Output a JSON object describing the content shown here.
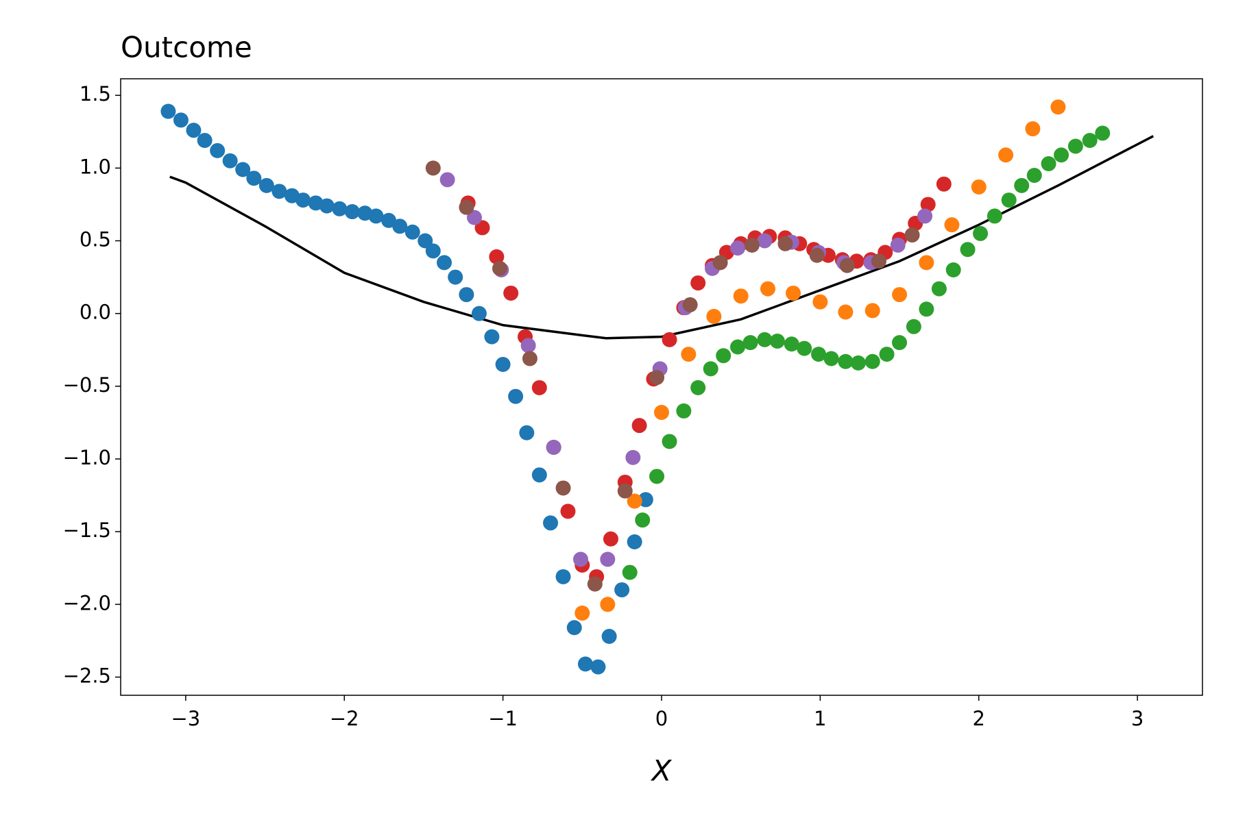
{
  "chart_data": {
    "type": "scatter",
    "title": "Outcome",
    "xlabel": "X",
    "xlim": [
      -3.41,
      3.41
    ],
    "ylim": [
      -2.625,
      1.614
    ],
    "xticks": [
      {
        "value": -3,
        "label": "−3"
      },
      {
        "value": -2,
        "label": "−2"
      },
      {
        "value": -1,
        "label": "−1"
      },
      0,
      1,
      2,
      3
    ],
    "yticks": [
      {
        "value": -2.5,
        "label": "−2.5"
      },
      {
        "value": -2,
        "label": "−2.0"
      },
      {
        "value": -1.5,
        "label": "−1.5"
      },
      {
        "value": -1,
        "label": "−1.0"
      },
      {
        "value": -0.5,
        "label": "−0.5"
      },
      {
        "value": 0,
        "label": "0.0"
      },
      0.5,
      {
        "value": 1,
        "label": "1.0"
      },
      1.5
    ],
    "series": [
      {
        "color": "#1f77b4",
        "x": [
          -3.11,
          -3.03,
          -2.95,
          -2.88,
          -2.8,
          -2.72,
          -2.64,
          -2.57,
          -2.49,
          -2.41,
          -2.33,
          -2.26,
          -2.18,
          -2.11,
          -2.03,
          -1.95,
          -1.87,
          -1.8,
          -1.72,
          -1.65,
          -1.57,
          -1.49,
          -1.44,
          -1.37,
          -1.3,
          -1.23,
          -1.15,
          -1.07,
          -1.0,
          -0.92,
          -0.85,
          -0.77,
          -0.7,
          -0.62,
          -0.55,
          -0.48,
          -0.4,
          -0.33,
          -0.25,
          -0.17,
          -0.1
        ],
        "values": [
          1.39,
          1.33,
          1.26,
          1.19,
          1.12,
          1.05,
          0.99,
          0.93,
          0.88,
          0.84,
          0.81,
          0.78,
          0.76,
          0.74,
          0.72,
          0.7,
          0.69,
          0.67,
          0.64,
          0.6,
          0.56,
          0.5,
          0.43,
          0.35,
          0.25,
          0.13,
          0.0,
          -0.16,
          -0.35,
          -0.57,
          -0.82,
          -1.11,
          -1.44,
          -1.81,
          -2.16,
          -2.41,
          -2.43,
          -2.22,
          -1.9,
          -1.57,
          -1.28
        ]
      },
      {
        "color": "#ff7f0e",
        "x": [
          -0.5,
          -0.34,
          -0.17,
          0.0,
          0.17,
          0.33,
          0.5,
          0.67,
          0.83,
          1.0,
          1.16,
          1.33,
          1.5,
          1.67,
          1.83,
          2.0,
          2.17,
          2.34,
          2.5
        ],
        "values": [
          -2.06,
          -2.0,
          -1.29,
          -0.68,
          -0.28,
          -0.02,
          0.12,
          0.17,
          0.14,
          0.08,
          0.01,
          0.02,
          0.13,
          0.35,
          0.61,
          0.87,
          1.09,
          1.27,
          1.42
        ]
      },
      {
        "color": "#2ca02c",
        "x": [
          -0.2,
          -0.12,
          -0.03,
          0.05,
          0.14,
          0.23,
          0.31,
          0.39,
          0.48,
          0.56,
          0.65,
          0.73,
          0.82,
          0.9,
          0.99,
          1.07,
          1.16,
          1.24,
          1.33,
          1.42,
          1.5,
          1.59,
          1.67,
          1.75,
          1.84,
          1.93,
          2.01,
          2.1,
          2.19,
          2.27,
          2.35,
          2.44,
          2.52,
          2.61,
          2.7,
          2.78
        ],
        "values": [
          -1.78,
          -1.42,
          -1.12,
          -0.88,
          -0.67,
          -0.51,
          -0.38,
          -0.29,
          -0.23,
          -0.2,
          -0.18,
          -0.19,
          -0.21,
          -0.24,
          -0.28,
          -0.31,
          -0.33,
          -0.34,
          -0.33,
          -0.28,
          -0.2,
          -0.09,
          0.03,
          0.17,
          0.3,
          0.44,
          0.55,
          0.67,
          0.78,
          0.88,
          0.95,
          1.03,
          1.09,
          1.15,
          1.19,
          1.24
        ]
      },
      {
        "color": "#d62728",
        "x": [
          -1.22,
          -1.13,
          -1.04,
          -0.95,
          -0.86,
          -0.77,
          -0.68,
          -0.59,
          -0.5,
          -0.41,
          -0.32,
          -0.23,
          -0.14,
          -0.05,
          0.05,
          0.14,
          0.23,
          0.32,
          0.41,
          0.5,
          0.59,
          0.68,
          0.78,
          0.87,
          0.96,
          1.05,
          1.14,
          1.23,
          1.32,
          1.41,
          1.5,
          1.6,
          1.68,
          1.78
        ],
        "values": [
          0.76,
          0.59,
          0.39,
          0.14,
          -0.16,
          -0.51,
          -0.92,
          -1.36,
          -1.73,
          -1.81,
          -1.55,
          -1.16,
          -0.77,
          -0.45,
          -0.18,
          0.04,
          0.21,
          0.33,
          0.42,
          0.48,
          0.52,
          0.53,
          0.52,
          0.48,
          0.44,
          0.4,
          0.37,
          0.36,
          0.37,
          0.42,
          0.51,
          0.62,
          0.75,
          0.89
        ]
      },
      {
        "color": "#9467bd",
        "x": [
          -1.35,
          -1.18,
          -1.01,
          -0.84,
          -0.68,
          -0.51,
          -0.34,
          -0.18,
          -0.01,
          0.15,
          0.32,
          0.48,
          0.65,
          0.82,
          0.99,
          1.15,
          1.32,
          1.49,
          1.66
        ],
        "values": [
          0.92,
          0.66,
          0.3,
          -0.22,
          -0.92,
          -1.69,
          -1.69,
          -0.99,
          -0.38,
          0.04,
          0.31,
          0.45,
          0.5,
          0.49,
          0.42,
          0.35,
          0.35,
          0.47,
          0.67
        ]
      },
      {
        "color": "#8c564b",
        "x": [
          -1.44,
          -1.23,
          -1.02,
          -0.83,
          -0.62,
          -0.42,
          -0.23,
          -0.03,
          0.18,
          0.37,
          0.57,
          0.78,
          0.98,
          1.17,
          1.37,
          1.58
        ],
        "values": [
          1.0,
          0.73,
          0.31,
          -0.31,
          -1.2,
          -1.86,
          -1.22,
          -0.44,
          0.06,
          0.35,
          0.47,
          0.48,
          0.4,
          0.33,
          0.36,
          0.54
        ]
      }
    ],
    "lines": [
      {
        "color": "#000000",
        "x": [
          -3.1,
          -3,
          -2.5,
          -2,
          -1.5,
          -1,
          -0.5,
          -0.35,
          0,
          0.5,
          1,
          1.5,
          2,
          2.5,
          3.1
        ],
        "values": [
          0.94,
          0.9,
          0.6,
          0.28,
          0.08,
          -0.08,
          -0.15,
          -0.17,
          -0.16,
          -0.04,
          0.16,
          0.36,
          0.61,
          0.88,
          1.22
        ]
      }
    ]
  }
}
